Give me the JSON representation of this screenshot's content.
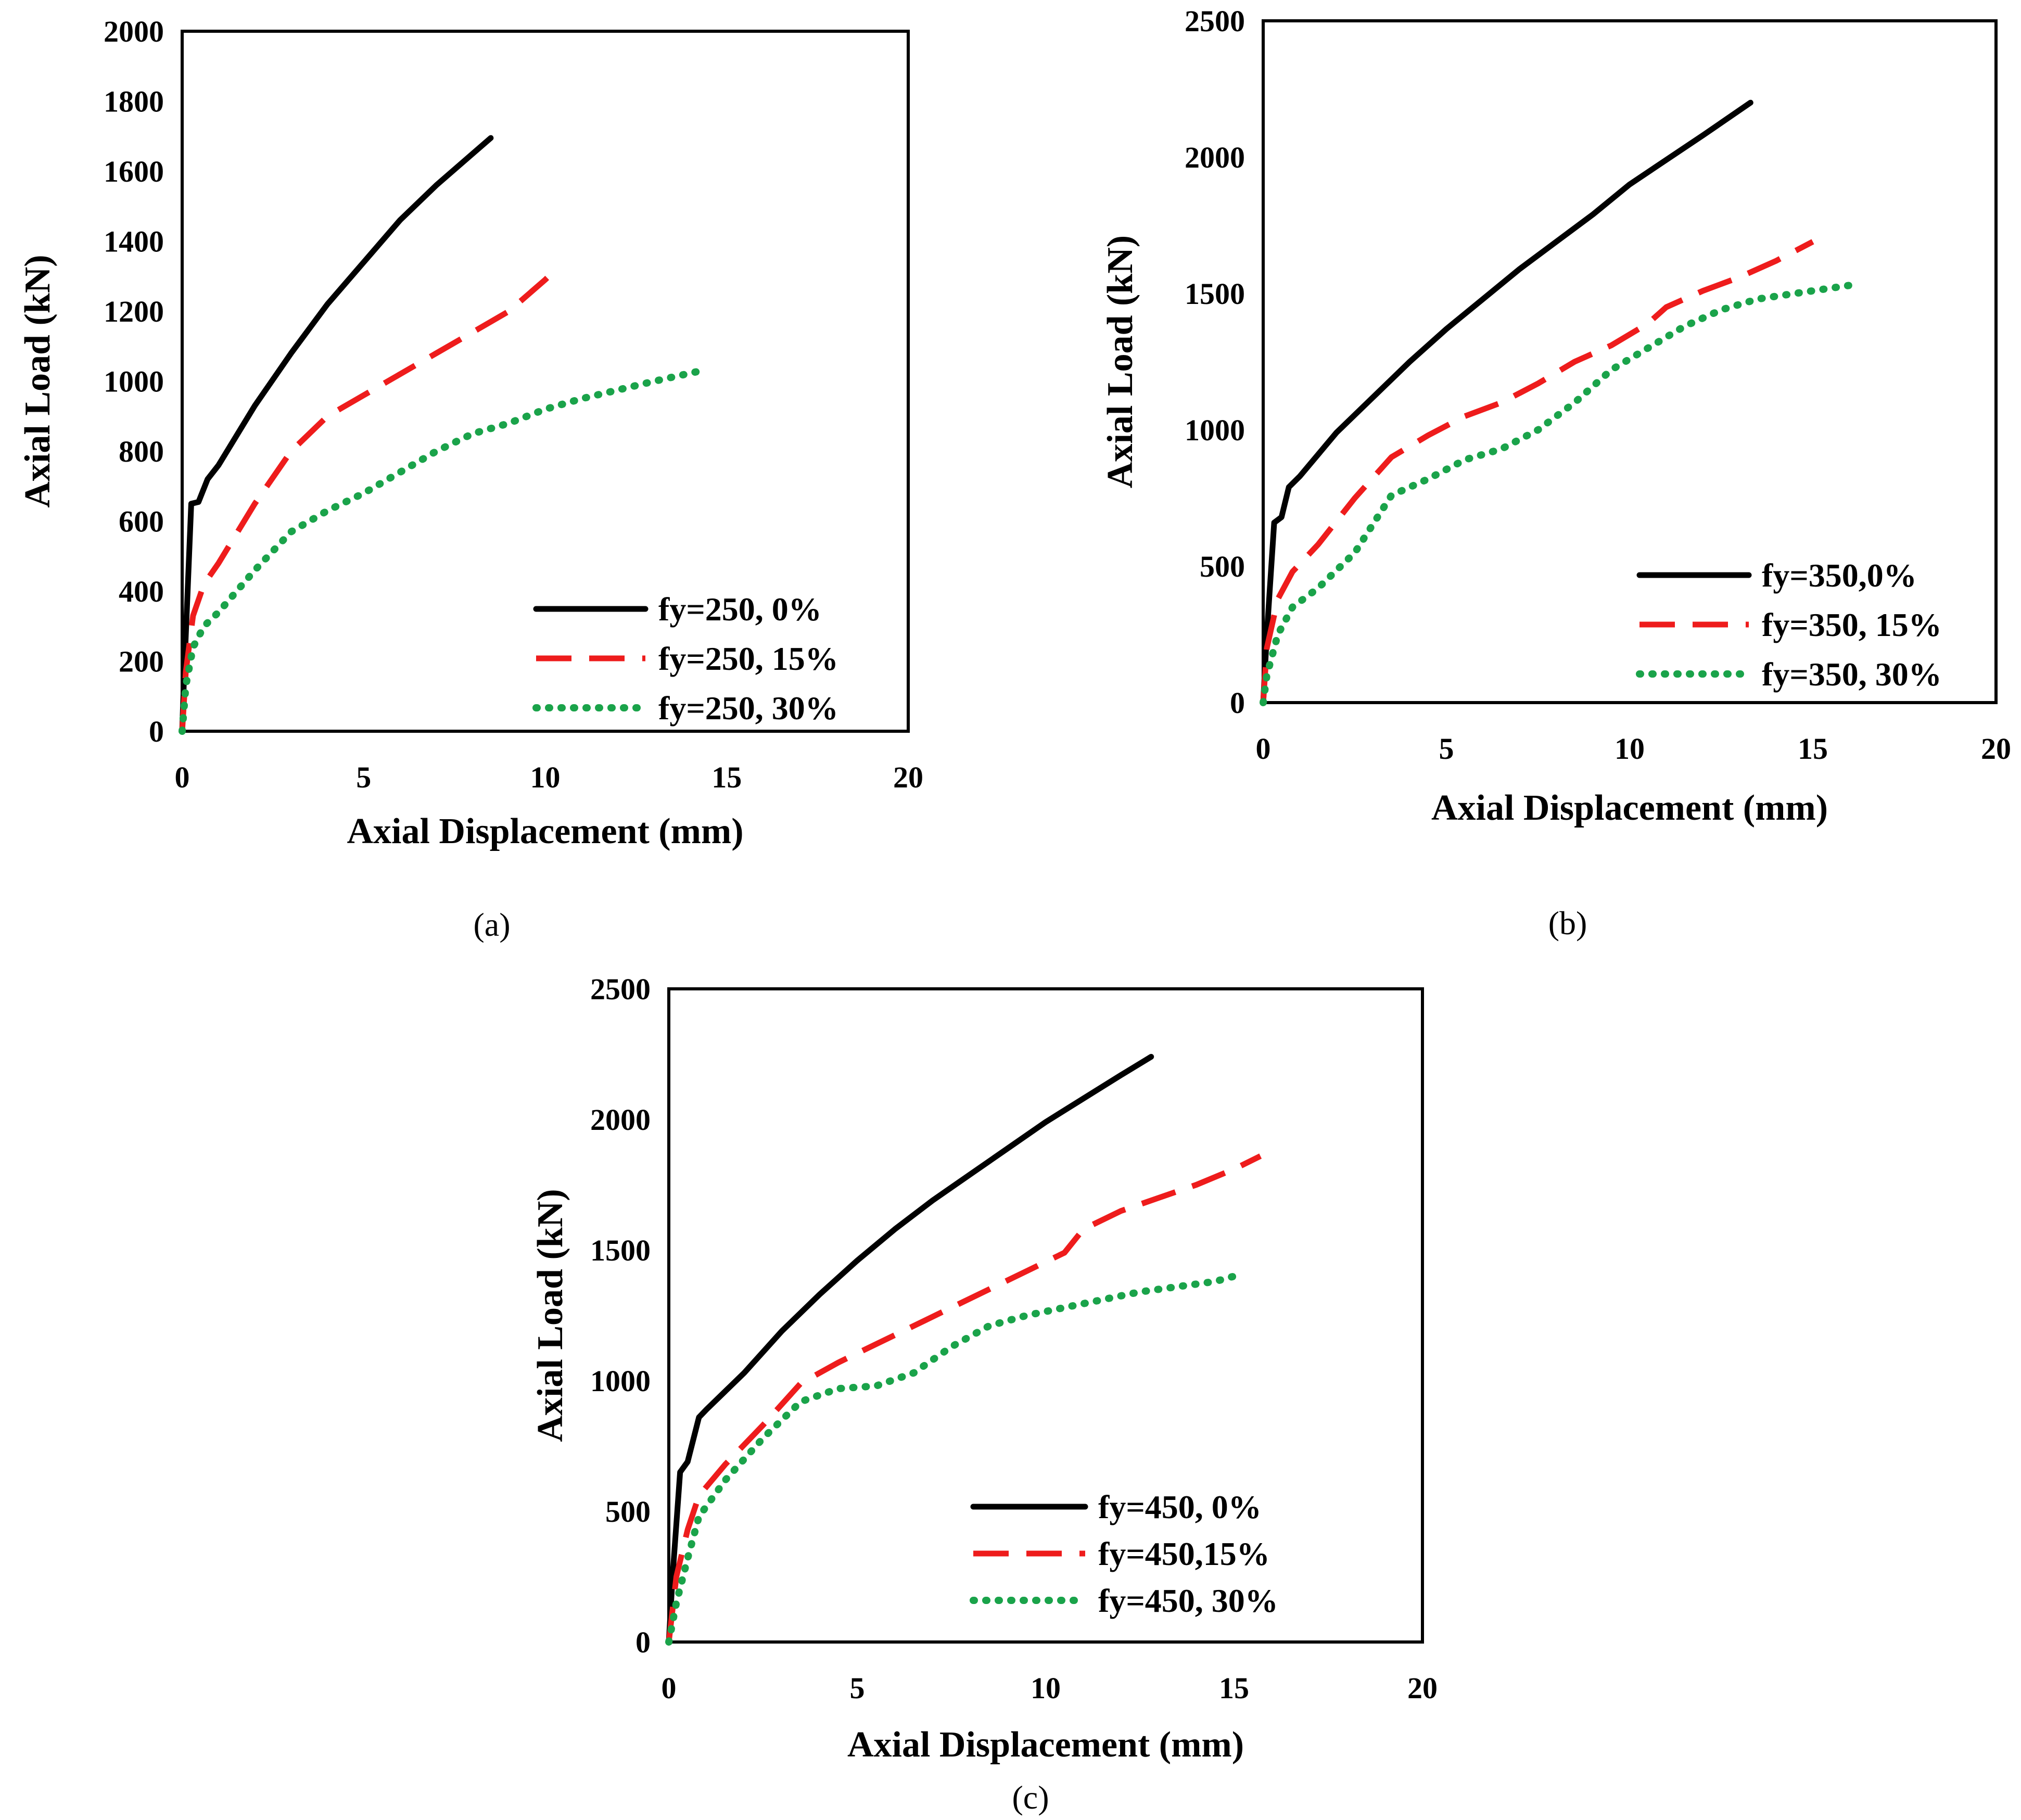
{
  "chart_data": [
    {
      "type": "line",
      "panel": "a",
      "caption": "(a)",
      "xlabel": "Axial Displacement (mm)",
      "ylabel": "Axial Load (kN)",
      "xlim": [
        0,
        20
      ],
      "ylim": [
        0,
        2000
      ],
      "xticks": [
        0,
        5,
        10,
        15,
        20
      ],
      "yticks": [
        0,
        200,
        400,
        600,
        800,
        1000,
        1200,
        1400,
        1600,
        1800,
        2000
      ],
      "legend_position": "bottom-right",
      "series": [
        {
          "name": "fy=250, 0%",
          "color": "#000000",
          "style": "solid",
          "points": [
            [
              0,
              0
            ],
            [
              0.05,
              150
            ],
            [
              0.15,
              400
            ],
            [
              0.25,
              650
            ],
            [
              0.45,
              655
            ],
            [
              0.7,
              720
            ],
            [
              1,
              760
            ],
            [
              2,
              930
            ],
            [
              3,
              1080
            ],
            [
              4,
              1220
            ],
            [
              5,
              1340
            ],
            [
              6,
              1460
            ],
            [
              7,
              1560
            ],
            [
              8,
              1650
            ],
            [
              8.5,
              1695
            ]
          ]
        },
        {
          "name": "fy=250, 15%",
          "color": "#ee1c1c",
          "style": "dashed",
          "points": [
            [
              0,
              0
            ],
            [
              0.1,
              170
            ],
            [
              0.3,
              330
            ],
            [
              0.6,
              420
            ],
            [
              1,
              480
            ],
            [
              2,
              650
            ],
            [
              3,
              800
            ],
            [
              4,
              900
            ],
            [
              5,
              960
            ],
            [
              6,
              1020
            ],
            [
              7,
              1080
            ],
            [
              8,
              1140
            ],
            [
              9,
              1200
            ],
            [
              10,
              1290
            ],
            [
              10.2,
              1310
            ]
          ]
        },
        {
          "name": "fy=250, 30%",
          "color": "#1aa34a",
          "style": "dotted",
          "points": [
            [
              0,
              0
            ],
            [
              0.1,
              130
            ],
            [
              0.3,
              240
            ],
            [
              0.6,
              300
            ],
            [
              1,
              340
            ],
            [
              2,
              460
            ],
            [
              3,
              570
            ],
            [
              4,
              630
            ],
            [
              5,
              680
            ],
            [
              6,
              740
            ],
            [
              7,
              800
            ],
            [
              8,
              850
            ],
            [
              9,
              880
            ],
            [
              10,
              920
            ],
            [
              11,
              950
            ],
            [
              12,
              975
            ],
            [
              13,
              1000
            ],
            [
              14.3,
              1030
            ]
          ]
        }
      ]
    },
    {
      "type": "line",
      "panel": "b",
      "caption": "(b)",
      "xlabel": "Axial Displacement (mm)",
      "ylabel": "Axial Load (kN)",
      "xlim": [
        0,
        20
      ],
      "ylim": [
        0,
        2500
      ],
      "xticks": [
        0,
        5,
        10,
        15,
        20
      ],
      "yticks": [
        0,
        500,
        1000,
        1500,
        2000,
        2500
      ],
      "legend_position": "bottom-right",
      "series": [
        {
          "name": "fy=350,0%",
          "color": "#000000",
          "style": "solid",
          "points": [
            [
              0,
              0
            ],
            [
              0.1,
              250
            ],
            [
              0.3,
              660
            ],
            [
              0.5,
              680
            ],
            [
              0.7,
              790
            ],
            [
              1,
              830
            ],
            [
              2,
              990
            ],
            [
              3,
              1120
            ],
            [
              4,
              1250
            ],
            [
              5,
              1370
            ],
            [
              6,
              1480
            ],
            [
              7,
              1590
            ],
            [
              8,
              1690
            ],
            [
              9,
              1790
            ],
            [
              10,
              1900
            ],
            [
              11,
              1990
            ],
            [
              12,
              2080
            ],
            [
              13.3,
              2200
            ]
          ]
        },
        {
          "name": "fy=350, 15%",
          "color": "#ee1c1c",
          "style": "dashed",
          "points": [
            [
              0,
              0
            ],
            [
              0.1,
              200
            ],
            [
              0.4,
              380
            ],
            [
              0.8,
              480
            ],
            [
              1.5,
              580
            ],
            [
              2.5,
              750
            ],
            [
              3.5,
              900
            ],
            [
              4.5,
              980
            ],
            [
              5.5,
              1050
            ],
            [
              6.5,
              1100
            ],
            [
              7.5,
              1170
            ],
            [
              8.5,
              1250
            ],
            [
              9.5,
              1310
            ],
            [
              10.5,
              1390
            ],
            [
              11,
              1450
            ],
            [
              12,
              1510
            ],
            [
              13,
              1560
            ],
            [
              14,
              1620
            ],
            [
              15,
              1690
            ]
          ]
        },
        {
          "name": "fy=350, 30%",
          "color": "#1aa34a",
          "style": "dotted",
          "points": [
            [
              0,
              0
            ],
            [
              0.1,
              100
            ],
            [
              0.4,
              250
            ],
            [
              0.8,
              350
            ],
            [
              1.5,
              420
            ],
            [
              2.5,
              550
            ],
            [
              3.5,
              760
            ],
            [
              4.5,
              820
            ],
            [
              5.5,
              890
            ],
            [
              6.5,
              930
            ],
            [
              7.5,
              1000
            ],
            [
              8.5,
              1100
            ],
            [
              9.5,
              1220
            ],
            [
              10.5,
              1300
            ],
            [
              11.5,
              1380
            ],
            [
              12.5,
              1440
            ],
            [
              13.5,
              1480
            ],
            [
              14.5,
              1500
            ],
            [
              16,
              1530
            ]
          ]
        }
      ]
    },
    {
      "type": "line",
      "panel": "c",
      "caption": "(c)",
      "xlabel": "Axial Displacement (mm)",
      "ylabel": "Axial Load (kN)",
      "xlim": [
        0,
        20
      ],
      "ylim": [
        0,
        2500
      ],
      "xticks": [
        0,
        5,
        10,
        15,
        20
      ],
      "yticks": [
        0,
        500,
        1000,
        1500,
        2000,
        2500
      ],
      "legend_position": "bottom-right",
      "series": [
        {
          "name": "fy=450, 0%",
          "color": "#000000",
          "style": "solid",
          "points": [
            [
              0,
              0
            ],
            [
              0.1,
              250
            ],
            [
              0.3,
              650
            ],
            [
              0.5,
              690
            ],
            [
              0.8,
              860
            ],
            [
              1,
              890
            ],
            [
              2,
              1030
            ],
            [
              3,
              1190
            ],
            [
              4,
              1330
            ],
            [
              5,
              1460
            ],
            [
              6,
              1580
            ],
            [
              7,
              1690
            ],
            [
              8,
              1790
            ],
            [
              9,
              1890
            ],
            [
              10,
              1990
            ],
            [
              11,
              2080
            ],
            [
              12,
              2170
            ],
            [
              12.8,
              2240
            ]
          ]
        },
        {
          "name": "fy=450,15%",
          "color": "#ee1c1c",
          "style": "dashed",
          "points": [
            [
              0,
              0
            ],
            [
              0.2,
              250
            ],
            [
              0.5,
              430
            ],
            [
              0.8,
              560
            ],
            [
              1.5,
              680
            ],
            [
              2.5,
              830
            ],
            [
              3.5,
              990
            ],
            [
              4.5,
              1070
            ],
            [
              5.5,
              1140
            ],
            [
              6.5,
              1210
            ],
            [
              7.5,
              1280
            ],
            [
              8.5,
              1350
            ],
            [
              9.5,
              1420
            ],
            [
              10.5,
              1490
            ],
            [
              11,
              1580
            ],
            [
              12,
              1650
            ],
            [
              13,
              1700
            ],
            [
              14,
              1750
            ],
            [
              15,
              1810
            ],
            [
              15.7,
              1860
            ]
          ]
        },
        {
          "name": "fy=450, 30%",
          "color": "#1aa34a",
          "style": "dotted",
          "points": [
            [
              0,
              0
            ],
            [
              0.2,
              150
            ],
            [
              0.5,
              320
            ],
            [
              0.8,
              480
            ],
            [
              1.5,
              620
            ],
            [
              2.5,
              780
            ],
            [
              3.5,
              920
            ],
            [
              4.5,
              970
            ],
            [
              5.5,
              980
            ],
            [
              6.5,
              1030
            ],
            [
              7.5,
              1130
            ],
            [
              8.5,
              1210
            ],
            [
              9.5,
              1250
            ],
            [
              10.5,
              1280
            ],
            [
              11.5,
              1310
            ],
            [
              12.5,
              1340
            ],
            [
              13.5,
              1360
            ],
            [
              14.5,
              1380
            ],
            [
              15,
              1400
            ]
          ]
        }
      ]
    }
  ]
}
